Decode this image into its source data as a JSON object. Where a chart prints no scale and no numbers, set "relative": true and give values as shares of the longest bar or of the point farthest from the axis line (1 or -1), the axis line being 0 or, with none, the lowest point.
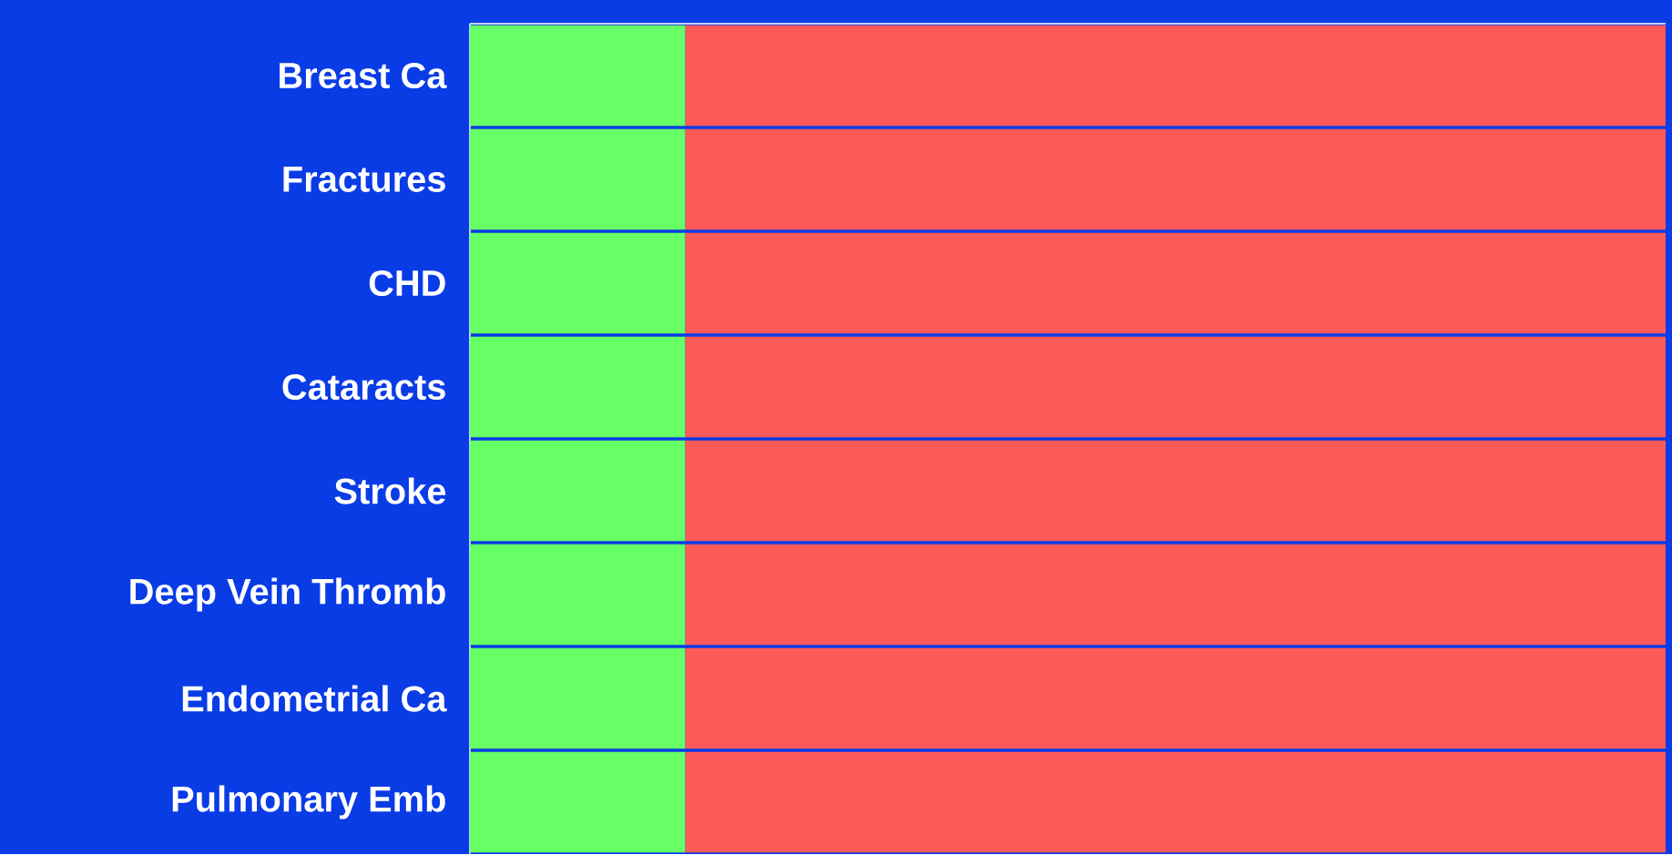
{
  "chart_data": {
    "type": "bar",
    "orientation": "horizontal",
    "stacked": true,
    "relative": true,
    "categories": [
      "Breast Ca",
      "Fractures",
      "CHD",
      "Cataracts",
      "Stroke",
      "Deep Vein Thromb",
      "Endometrial Ca",
      "Pulmonary Emb"
    ],
    "series": [
      {
        "color": "#66ff66",
        "values": [
          0.18,
          0.18,
          0.18,
          0.18,
          0.18,
          0.18,
          0.18,
          0.18
        ]
      },
      {
        "color": "#ff5a5a",
        "values": [
          0.82,
          0.82,
          0.82,
          0.82,
          0.82,
          0.82,
          0.82,
          0.82
        ]
      }
    ]
  }
}
